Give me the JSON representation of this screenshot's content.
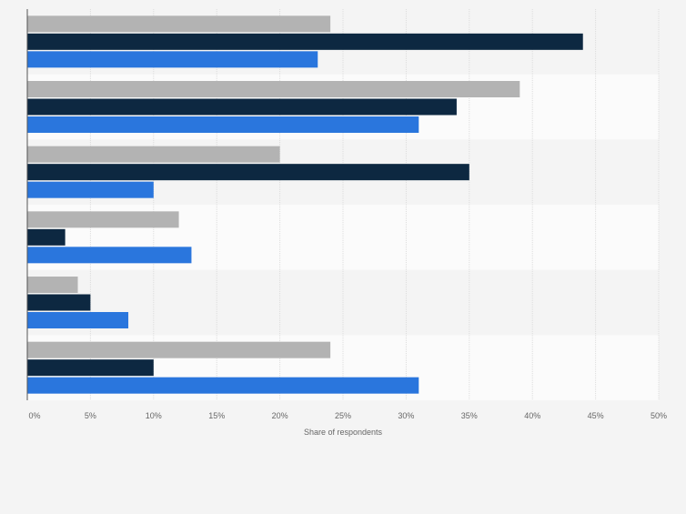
{
  "chart_data": {
    "type": "bar",
    "orientation": "horizontal",
    "title": "",
    "xlabel": "Share of respondents",
    "ylabel": "",
    "xlim": [
      0,
      50
    ],
    "x_ticks": [
      "0%",
      "5%",
      "10%",
      "15%",
      "20%",
      "25%",
      "30%",
      "35%",
      "40%",
      "45%",
      "50%"
    ],
    "categories": [
      "",
      "",
      "",
      "",
      "",
      ""
    ],
    "series": [
      {
        "color": "#b3b3b3",
        "values": [
          24,
          39,
          20,
          12,
          4,
          24
        ]
      },
      {
        "color": "#0d2841",
        "values": [
          44,
          34,
          35,
          3,
          5,
          10
        ]
      },
      {
        "color": "#2a76dd",
        "values": [
          23,
          31,
          10,
          13,
          8,
          31
        ]
      }
    ],
    "grid": true,
    "legend": "none"
  }
}
